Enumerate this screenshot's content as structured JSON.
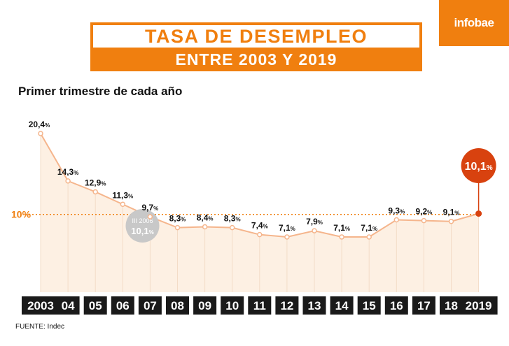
{
  "brand": "infobae",
  "header": {
    "title": "TASA DE DESEMPLEO",
    "subtitle": "ENTRE 2003 Y  2019"
  },
  "chart_title": "Primer trimestre de cada año",
  "source": "FUENTE: Indec",
  "colors": {
    "accent": "#f07f0f",
    "highlight": "#d8420f",
    "area": "#fdf0e3",
    "line": "#f5b58c",
    "annotation": "#c8c8c8",
    "axis_box": "#1a1a1a"
  },
  "chart_data": {
    "type": "area",
    "title": "Primer trimestre de cada año",
    "categories": [
      "2003",
      "04",
      "05",
      "06",
      "07",
      "08",
      "09",
      "10",
      "11",
      "12",
      "13",
      "14",
      "15",
      "16",
      "17",
      "18",
      "2019"
    ],
    "values": [
      20.4,
      14.3,
      12.9,
      11.3,
      9.7,
      8.3,
      8.4,
      8.3,
      7.4,
      7.1,
      7.9,
      7.1,
      7.1,
      9.3,
      9.2,
      9.1,
      10.1
    ],
    "labels": [
      "20,4",
      "14,3",
      "12,9",
      "11,3",
      "9,7",
      "8,3",
      "8,4",
      "8,3",
      "7,4",
      "7,1",
      "7,9",
      "7,1",
      "7,1",
      "9,3",
      "9,2",
      "9,1",
      "10,1"
    ],
    "unit": "%",
    "ylim": [
      0,
      22
    ],
    "reference_line": {
      "value": 10,
      "label": "10%"
    },
    "annotation": {
      "period": "III 2006",
      "value": 10.1,
      "label": "10,1",
      "unit": "%"
    },
    "highlight": {
      "index": 16,
      "label": "10,1",
      "unit": "%"
    }
  }
}
